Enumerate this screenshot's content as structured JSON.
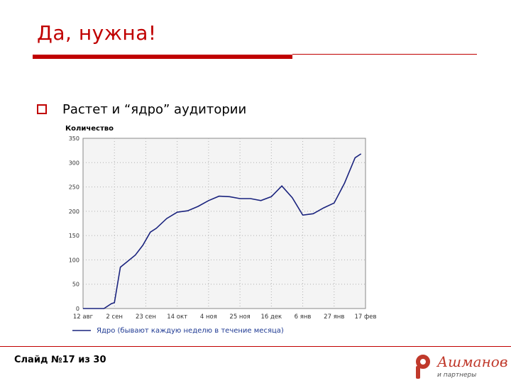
{
  "slide": {
    "title": "Да, нужна!",
    "bullet": "Растет и “ядро” аудитории",
    "counter": "Слайд №17 из 30"
  },
  "logo": {
    "name": "Ашманов",
    "sub": "и партнеры"
  },
  "colors": {
    "accent": "#c00000",
    "line": "#1a237e",
    "legend_text": "#1f3a93"
  },
  "chart_data": {
    "type": "line",
    "ylabel": "Количество",
    "ylim": [
      0,
      350
    ],
    "yticks": [
      0,
      50,
      100,
      150,
      200,
      250,
      300,
      350
    ],
    "xlim": [
      "2004-08-12",
      "2005-02-17"
    ],
    "xticks": [
      {
        "date": "2004-08-12",
        "label": "12 авг"
      },
      {
        "date": "2004-09-02",
        "label": "2 сен"
      },
      {
        "date": "2004-09-23",
        "label": "23 сен"
      },
      {
        "date": "2004-10-14",
        "label": "14 окт"
      },
      {
        "date": "2004-11-04",
        "label": "4 ноя"
      },
      {
        "date": "2004-11-25",
        "label": "25 ноя"
      },
      {
        "date": "2004-12-16",
        "label": "16 дек"
      },
      {
        "date": "2005-01-06",
        "label": "6 янв"
      },
      {
        "date": "2005-01-27",
        "label": "27 янв"
      },
      {
        "date": "2005-02-17",
        "label": "17 фев"
      }
    ],
    "grid": true,
    "legend_position": "bottom",
    "series": [
      {
        "name": "Ядро (бывают каждую неделю в течение месяца)",
        "points": [
          [
            "2004-08-12",
            0
          ],
          [
            "2004-08-19",
            0
          ],
          [
            "2004-08-26",
            0
          ],
          [
            "2004-08-31",
            10
          ],
          [
            "2004-09-02",
            12
          ],
          [
            "2004-09-06",
            85
          ],
          [
            "2004-09-10",
            95
          ],
          [
            "2004-09-16",
            110
          ],
          [
            "2004-09-21",
            130
          ],
          [
            "2004-09-26",
            157
          ],
          [
            "2004-09-30",
            165
          ],
          [
            "2004-10-07",
            185
          ],
          [
            "2004-10-14",
            198
          ],
          [
            "2004-10-21",
            201
          ],
          [
            "2004-10-28",
            210
          ],
          [
            "2004-11-04",
            222
          ],
          [
            "2004-11-11",
            231
          ],
          [
            "2004-11-18",
            230
          ],
          [
            "2004-11-25",
            226
          ],
          [
            "2004-12-02",
            226
          ],
          [
            "2004-12-09",
            222
          ],
          [
            "2004-12-16",
            230
          ],
          [
            "2004-12-23",
            252
          ],
          [
            "2004-12-30",
            228
          ],
          [
            "2005-01-06",
            192
          ],
          [
            "2005-01-13",
            195
          ],
          [
            "2005-01-20",
            207
          ],
          [
            "2005-01-27",
            217
          ],
          [
            "2005-02-03",
            258
          ],
          [
            "2005-02-10",
            310
          ],
          [
            "2005-02-14",
            318
          ]
        ]
      }
    ]
  }
}
